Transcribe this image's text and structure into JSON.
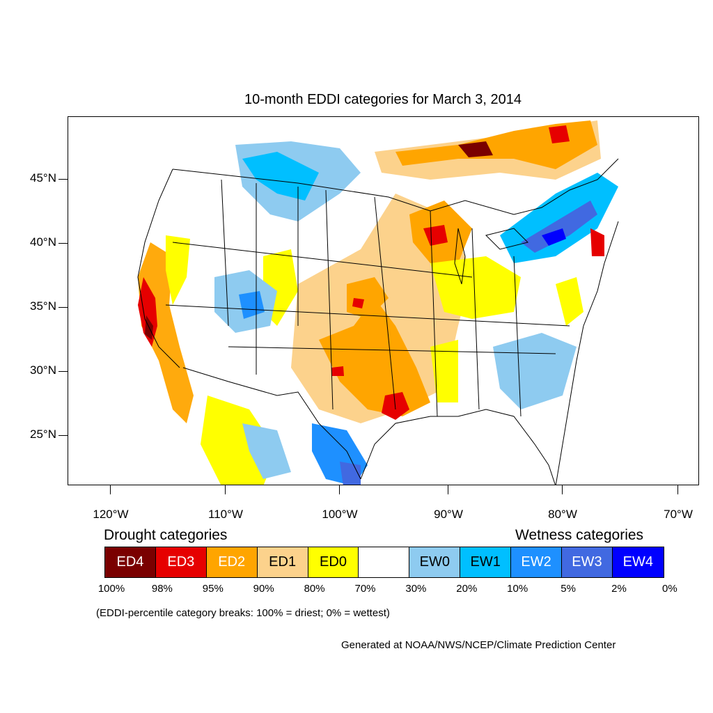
{
  "title": "10-month EDDI categories for March 3, 2014",
  "lat_labels": [
    "45°N",
    "40°N",
    "35°N",
    "30°N",
    "25°N"
  ],
  "lon_labels": [
    "120°W",
    "110°W",
    "100°W",
    "90°W",
    "80°W",
    "70°W"
  ],
  "legend": {
    "drought_heading": "Drought categories",
    "wetness_heading": "Wetness categories",
    "categories": [
      {
        "label": "ED4",
        "color": "#7a0000",
        "text_color": "#ffffff"
      },
      {
        "label": "ED3",
        "color": "#e60000",
        "text_color": "#ffffff"
      },
      {
        "label": "ED2",
        "color": "#ffa500",
        "text_color": "#ffffff"
      },
      {
        "label": "ED1",
        "color": "#fcd28c",
        "text_color": "#000000"
      },
      {
        "label": "ED0",
        "color": "#ffff00",
        "text_color": "#000000"
      },
      {
        "label": "",
        "color": "#ffffff",
        "text_color": "#000000"
      },
      {
        "label": "EW0",
        "color": "#8ecbf0",
        "text_color": "#000000"
      },
      {
        "label": "EW1",
        "color": "#00bfff",
        "text_color": "#000000"
      },
      {
        "label": "EW2",
        "color": "#1e90ff",
        "text_color": "#ffffff"
      },
      {
        "label": "EW3",
        "color": "#4169e1",
        "text_color": "#ffffff"
      },
      {
        "label": "EW4",
        "color": "#0000ff",
        "text_color": "#ffffff"
      }
    ],
    "percent_breaks": [
      "100%",
      "98%",
      "95%",
      "90%",
      "80%",
      "70%",
      "30%",
      "20%",
      "10%",
      "5%",
      "2%",
      "0%"
    ]
  },
  "note": "(EDDI-percentile category breaks: 100% = driest; 0% = wettest)",
  "credit": "Generated at NOAA/NWS/NCEP/Climate Prediction Center"
}
